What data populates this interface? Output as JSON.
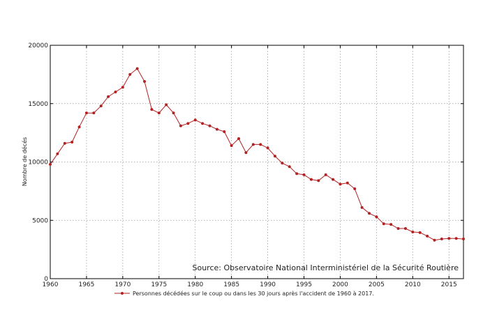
{
  "chart_data": {
    "type": "line",
    "ylabel": "Nombre de décés",
    "xlabel": "",
    "source_note": "Source: Observatoire National Interministériel de la Sécurité Routière",
    "xlim": [
      1960,
      2017
    ],
    "ylim": [
      0,
      20000
    ],
    "x_ticks": [
      1960,
      1965,
      1970,
      1975,
      1980,
      1985,
      1990,
      1995,
      2000,
      2005,
      2010,
      2015
    ],
    "y_ticks": [
      0,
      5000,
      10000,
      15000,
      20000
    ],
    "grid": true,
    "legend": "bottom",
    "series": [
      {
        "name": "Personnes décédées sur le coup ou dans les 30 jours après l'accident de 1960 à 2017.",
        "color": "#b22222",
        "x": [
          1960,
          1961,
          1962,
          1963,
          1964,
          1965,
          1966,
          1967,
          1968,
          1969,
          1970,
          1971,
          1972,
          1973,
          1974,
          1975,
          1976,
          1977,
          1978,
          1979,
          1980,
          1981,
          1982,
          1983,
          1984,
          1985,
          1986,
          1987,
          1988,
          1989,
          1990,
          1991,
          1992,
          1993,
          1994,
          1995,
          1996,
          1997,
          1998,
          1999,
          2000,
          2001,
          2002,
          2003,
          2004,
          2005,
          2006,
          2007,
          2008,
          2009,
          2010,
          2011,
          2012,
          2013,
          2014,
          2015,
          2016,
          2017
        ],
        "values": [
          9800,
          10700,
          11600,
          11700,
          13000,
          14200,
          14200,
          14800,
          15600,
          16000,
          16400,
          17500,
          18000,
          16900,
          14500,
          14200,
          14900,
          14200,
          13100,
          13300,
          13600,
          13300,
          13100,
          12800,
          12600,
          11400,
          12000,
          10800,
          11500,
          11500,
          11200,
          10500,
          9900,
          9600,
          9000,
          8900,
          8500,
          8400,
          8900,
          8500,
          8100,
          8200,
          7700,
          6100,
          5600,
          5300,
          4700,
          4650,
          4300,
          4300,
          4000,
          3950,
          3650,
          3300,
          3400,
          3450,
          3450,
          3400
        ]
      }
    ]
  }
}
